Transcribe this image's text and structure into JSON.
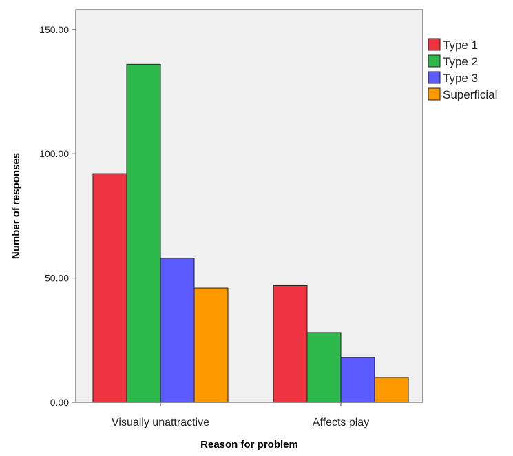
{
  "chart_data": {
    "type": "bar",
    "title": "",
    "xlabel": "Reason for problem",
    "ylabel": "Number of responses",
    "categories": [
      "Visually unattractive",
      "Affects play"
    ],
    "series": [
      {
        "name": "Type 1",
        "color": "#ef3340",
        "values": [
          92,
          47
        ]
      },
      {
        "name": "Type 2",
        "color": "#2db84b",
        "values": [
          136,
          28
        ]
      },
      {
        "name": "Type 3",
        "color": "#5b5bff",
        "values": [
          58,
          18
        ]
      },
      {
        "name": "Superficial",
        "color": "#ff9900",
        "values": [
          46,
          10
        ]
      }
    ],
    "ylim": [
      0,
      158
    ],
    "yticks": [
      0,
      50,
      100,
      150
    ],
    "ytick_labels": [
      "0.00",
      "50.00",
      "100.00",
      "150.00"
    ],
    "legend": "right",
    "grid": false,
    "plot_background": "#f0f0f0"
  }
}
